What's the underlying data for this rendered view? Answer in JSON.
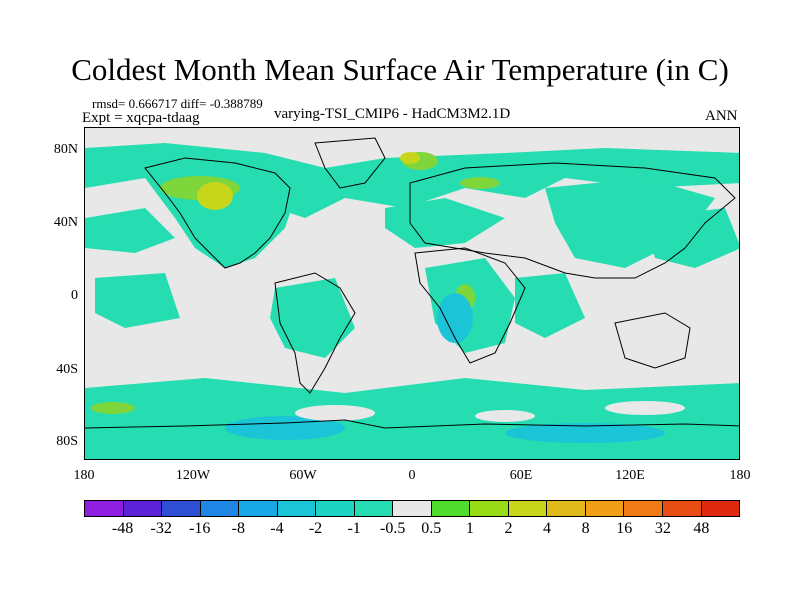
{
  "title": "Coldest Month Mean Surface Air Temperature (in C)",
  "stats_line": "rmsd= 0.666717 diff= -0.388789",
  "expt_line": "Expt = xqcpa-tdaag",
  "subtitle": "varying-TSI_CMIP6 - HadCM3M2.1D",
  "season": "ANN",
  "lat_ticks": [
    "80N",
    "40N",
    "0",
    "40S",
    "80S"
  ],
  "lon_ticks": [
    "180",
    "120W",
    "60W",
    "0",
    "60E",
    "120E",
    "180"
  ],
  "colorbar": {
    "colors": [
      "#8f1fe0",
      "#5b22d8",
      "#2e4fd3",
      "#1f86e6",
      "#19a8e6",
      "#1cc4d8",
      "#1fd3c2",
      "#25ddb0",
      "#e8e8e8",
      "#4fdc2c",
      "#98dc18",
      "#c7d61a",
      "#e0b91a",
      "#f09f17",
      "#f07a16",
      "#e74c12",
      "#df2a0f"
    ],
    "labels": [
      "-48",
      "-32",
      "-16",
      "-8",
      "-4",
      "-2",
      "-1",
      "-0.5",
      "0.5",
      "1",
      "2",
      "4",
      "8",
      "16",
      "32",
      "48"
    ]
  }
}
